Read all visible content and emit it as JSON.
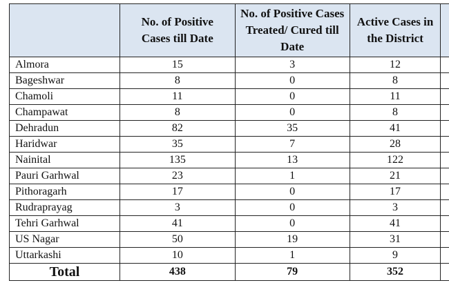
{
  "table": {
    "columns": [
      "No. of Positive Cases till Date",
      "No. of Positive Cases Treated/ Cured till Date",
      "Active Cases in the District"
    ],
    "rows": [
      [
        "Almora",
        15,
        3,
        12
      ],
      [
        "Bageshwar",
        8,
        0,
        8
      ],
      [
        "Chamoli",
        11,
        0,
        11
      ],
      [
        "Champawat",
        8,
        0,
        8
      ],
      [
        "Dehradun",
        82,
        35,
        41
      ],
      [
        "Haridwar",
        35,
        7,
        28
      ],
      [
        "Nainital",
        135,
        13,
        122
      ],
      [
        "Pauri Garhwal",
        23,
        1,
        21
      ],
      [
        "Pithoragarh",
        17,
        0,
        17
      ],
      [
        "Rudraprayag",
        3,
        0,
        3
      ],
      [
        "Tehri Garhwal",
        41,
        0,
        41
      ],
      [
        "US Nagar",
        50,
        19,
        31
      ],
      [
        "Uttarkashi",
        10,
        1,
        9
      ]
    ],
    "total": [
      "Total",
      438,
      79,
      352
    ]
  }
}
